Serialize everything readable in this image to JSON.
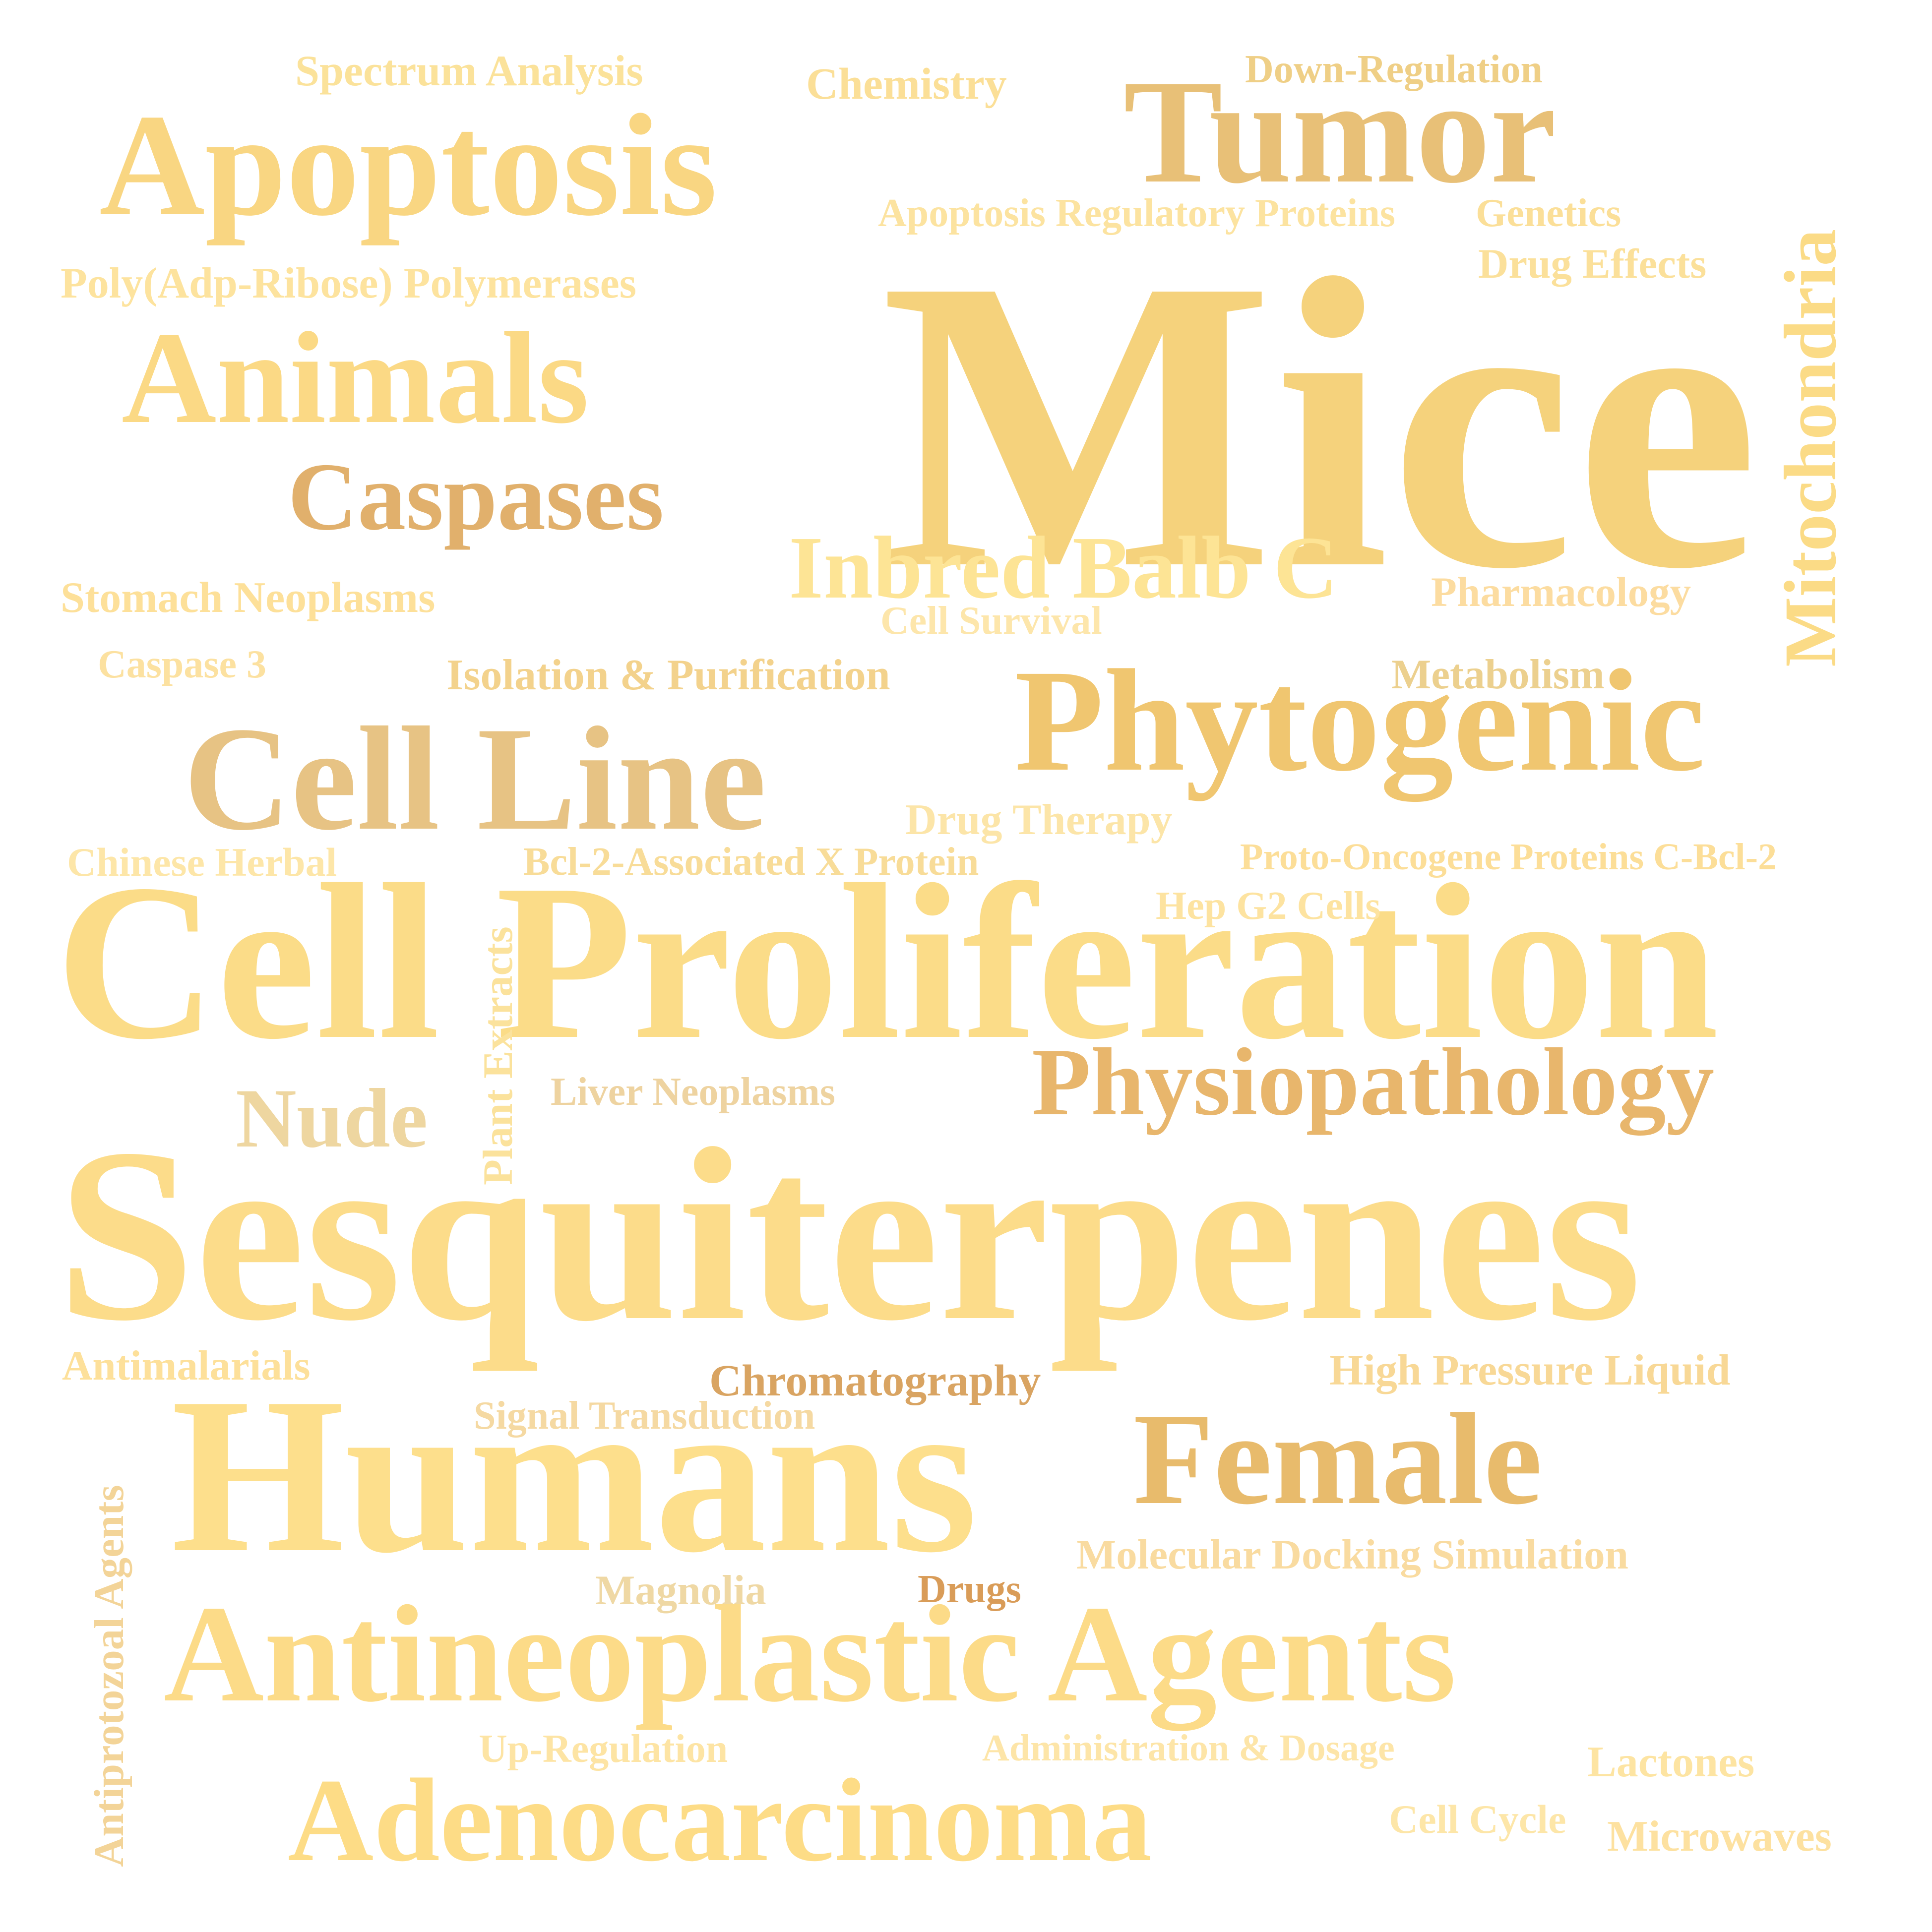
{
  "words": [
    {
      "text": "Mice",
      "color": "#f5d27c",
      "vertical": false
    },
    {
      "text": "Sesquiterpenes",
      "color": "#fcdc8a",
      "vertical": false
    },
    {
      "text": "Cell Proliferation",
      "color": "#fbdc88",
      "vertical": false
    },
    {
      "text": "Humans",
      "color": "#fddf8c",
      "vertical": false
    },
    {
      "text": "Antineoplastic Agents",
      "color": "#fcdb88",
      "vertical": false
    },
    {
      "text": "Apoptosis",
      "color": "#f9d682",
      "vertical": false
    },
    {
      "text": "Tumor",
      "color": "#e8c077",
      "vertical": false
    },
    {
      "text": "Animals",
      "color": "#fbd985",
      "vertical": false
    },
    {
      "text": "Phytogenic",
      "color": "#f0c670",
      "vertical": false
    },
    {
      "text": "Cell Line",
      "color": "#e7c384",
      "vertical": false
    },
    {
      "text": "Adenocarcinoma",
      "color": "#fddc86",
      "vertical": false
    },
    {
      "text": "Female",
      "color": "#e8bb6c",
      "vertical": false
    },
    {
      "text": "Caspases",
      "color": "#e1b06c",
      "vertical": false
    },
    {
      "text": "Physiopathology",
      "color": "#e8b66c",
      "vertical": false
    },
    {
      "text": "Inbred Balb C",
      "color": "#fde495",
      "vertical": false
    },
    {
      "text": "Nude",
      "color": "#eed6a0",
      "vertical": false
    },
    {
      "text": "Mitochondria",
      "color": "#fbdb86",
      "vertical": true
    },
    {
      "text": "Spectrum Analysis",
      "color": "#fbe29a",
      "vertical": false
    },
    {
      "text": "Chemistry",
      "color": "#fbdf97",
      "vertical": false
    },
    {
      "text": "Down-Regulation",
      "color": "#efcf86",
      "vertical": false
    },
    {
      "text": "Apoptosis Regulatory Proteins",
      "color": "#fce3a0",
      "vertical": false
    },
    {
      "text": "Genetics",
      "color": "#fbdf98",
      "vertical": false
    },
    {
      "text": "Drug Effects",
      "color": "#fbe09a",
      "vertical": false
    },
    {
      "text": "Poly(Adp-Ribose) Polymerases",
      "color": "#fde39e",
      "vertical": false
    },
    {
      "text": "Stomach Neoplasms",
      "color": "#fde099",
      "vertical": false
    },
    {
      "text": "Pharmacology",
      "color": "#fcdca0",
      "vertical": false
    },
    {
      "text": "Cell Survival",
      "color": "#fde6ab",
      "vertical": false
    },
    {
      "text": "Caspase 3",
      "color": "#fce1a0",
      "vertical": false
    },
    {
      "text": "Isolation & Purification",
      "color": "#f3d28c",
      "vertical": false
    },
    {
      "text": "Metabolism",
      "color": "#ecd08e",
      "vertical": false
    },
    {
      "text": "Drug Therapy",
      "color": "#fce5a8",
      "vertical": false
    },
    {
      "text": "Chinese Herbal",
      "color": "#fde6a8",
      "vertical": false
    },
    {
      "text": "Bcl-2-Associated X Protein",
      "color": "#f8dc98",
      "vertical": false
    },
    {
      "text": "Proto-Oncogene Proteins C-Bcl-2",
      "color": "#fcde98",
      "vertical": false
    },
    {
      "text": "Hep G2 Cells",
      "color": "#fde3a0",
      "vertical": false
    },
    {
      "text": "Plant Extracts",
      "color": "#fbe29c",
      "vertical": true
    },
    {
      "text": "Liver Neoplasms",
      "color": "#eed3a0",
      "vertical": false
    },
    {
      "text": "Antimalarials",
      "color": "#fde09a",
      "vertical": false
    },
    {
      "text": "Chromatography",
      "color": "#d9a462",
      "vertical": false
    },
    {
      "text": "Signal Transduction",
      "color": "#f5d9a2",
      "vertical": false
    },
    {
      "text": "High Pressure Liquid",
      "color": "#f8d896",
      "vertical": false
    },
    {
      "text": "Antiprotozoal Agents",
      "color": "#f3d498",
      "vertical": true
    },
    {
      "text": "Molecular Docking Simulation",
      "color": "#f9dba0",
      "vertical": false
    },
    {
      "text": "Magnolia",
      "color": "#efd8a4",
      "vertical": false
    },
    {
      "text": "Drugs",
      "color": "#d99c58",
      "vertical": false
    },
    {
      "text": "Up-Regulation",
      "color": "#fde4a4",
      "vertical": false
    },
    {
      "text": "Administration & Dosage",
      "color": "#fde5a8",
      "vertical": false
    },
    {
      "text": "Lactones",
      "color": "#fde4a2",
      "vertical": false
    },
    {
      "text": "Cell Cycle",
      "color": "#fde6a8",
      "vertical": false
    },
    {
      "text": "Microwaves",
      "color": "#fde1a0",
      "vertical": false
    }
  ]
}
